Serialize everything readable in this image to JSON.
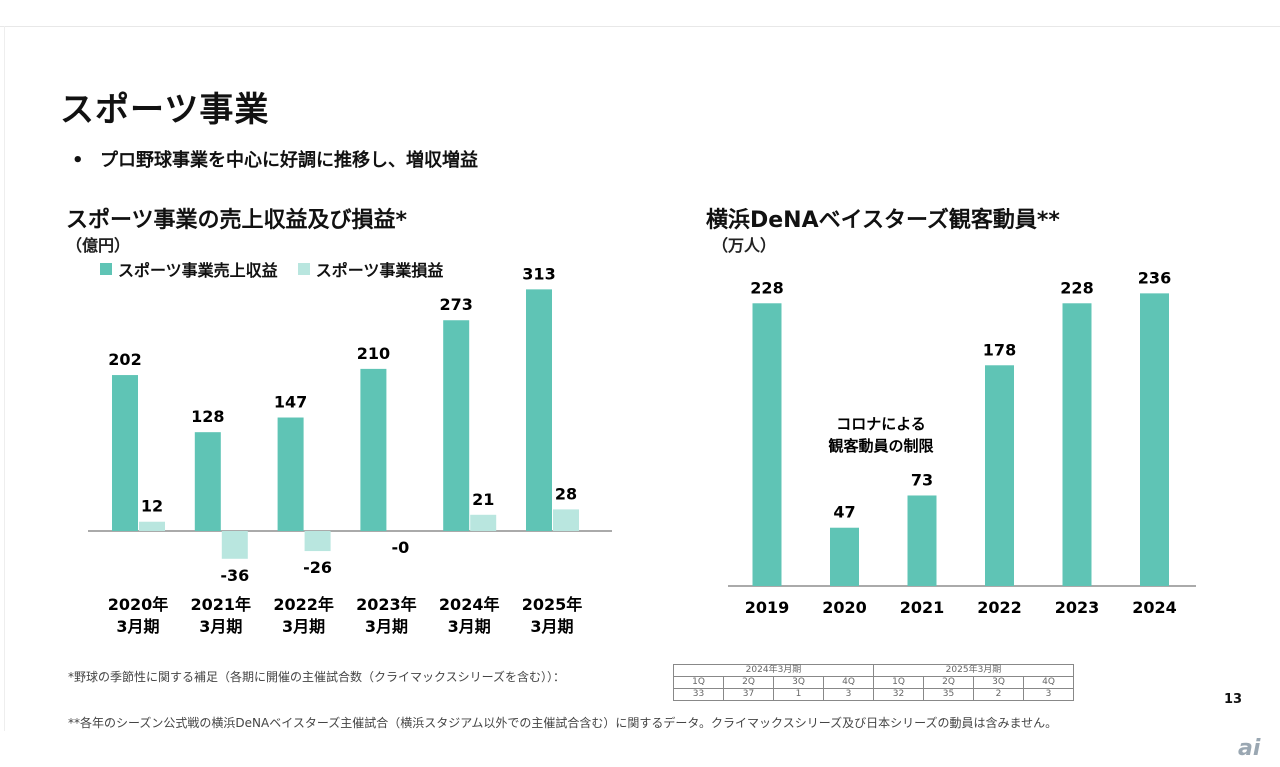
{
  "page": {
    "title": "スポーツ事業",
    "bullet_symbol": "•",
    "bullet": "プロ野球事業を中心に好調に推移し、増収増益",
    "page_number": "13",
    "logo": "ai"
  },
  "colors": {
    "revenue": "#5fc4b5",
    "profit": "#b9e6df",
    "axis": "#555555"
  },
  "left_chart": {
    "title": "スポーツ事業の売上収益及び損益*",
    "unit": "（億円）",
    "legend": {
      "revenue": "スポーツ事業売上収益",
      "profit": "スポーツ事業損益"
    }
  },
  "right_chart": {
    "title": "横浜DeNAベイスターズ観客動員**",
    "unit": "（万人）",
    "annotation": [
      "コロナによる",
      "観客動員の制限"
    ]
  },
  "chart_data": [
    {
      "type": "bar",
      "title": "スポーツ事業の売上収益及び損益*",
      "ylabel": "（億円）",
      "categories": [
        "2020年\n3月期",
        "2021年\n3月期",
        "2022年\n3月期",
        "2023年\n3月期",
        "2024年\n3月期",
        "2025年\n3月期"
      ],
      "series": [
        {
          "name": "スポーツ事業売上収益",
          "values": [
            202,
            128,
            147,
            210,
            273,
            313
          ],
          "labels": [
            "202",
            "128",
            "147",
            "210",
            "273",
            "313"
          ]
        },
        {
          "name": "スポーツ事業損益",
          "values": [
            12,
            -36,
            -26,
            0,
            21,
            28
          ],
          "labels": [
            "12",
            "-36",
            "-26",
            "-0",
            "21",
            "28"
          ]
        }
      ],
      "ylim": [
        -50,
        330
      ]
    },
    {
      "type": "bar",
      "title": "横浜DeNAベイスターズ観客動員**",
      "ylabel": "（万人）",
      "categories": [
        "2019",
        "2020",
        "2021",
        "2022",
        "2023",
        "2024"
      ],
      "values": [
        228,
        47,
        73,
        178,
        228,
        236
      ],
      "labels": [
        "228",
        "47",
        "73",
        "178",
        "228",
        "236"
      ],
      "ylim": [
        0,
        250
      ]
    }
  ],
  "footnotes": {
    "note1": "*野球の季節性に関する補足（各期に開催の主催試合数（クライマックスシリーズを含む））：",
    "note2": "**各年のシーズン公式戦の横浜DeNAベイスターズ主催試合（横浜スタジアム以外での主催試合含む）に関するデータ。クライマックスシリーズ及び日本シリーズの動員は含みません。"
  },
  "season_table": {
    "fy2024": "2024年3月期",
    "fy2025": "2025年3月期",
    "quarters": [
      "1Q",
      "2Q",
      "3Q",
      "4Q"
    ],
    "games_2024": [
      "33",
      "37",
      "1",
      "3"
    ],
    "games_2025": [
      "32",
      "35",
      "2",
      "3"
    ]
  }
}
